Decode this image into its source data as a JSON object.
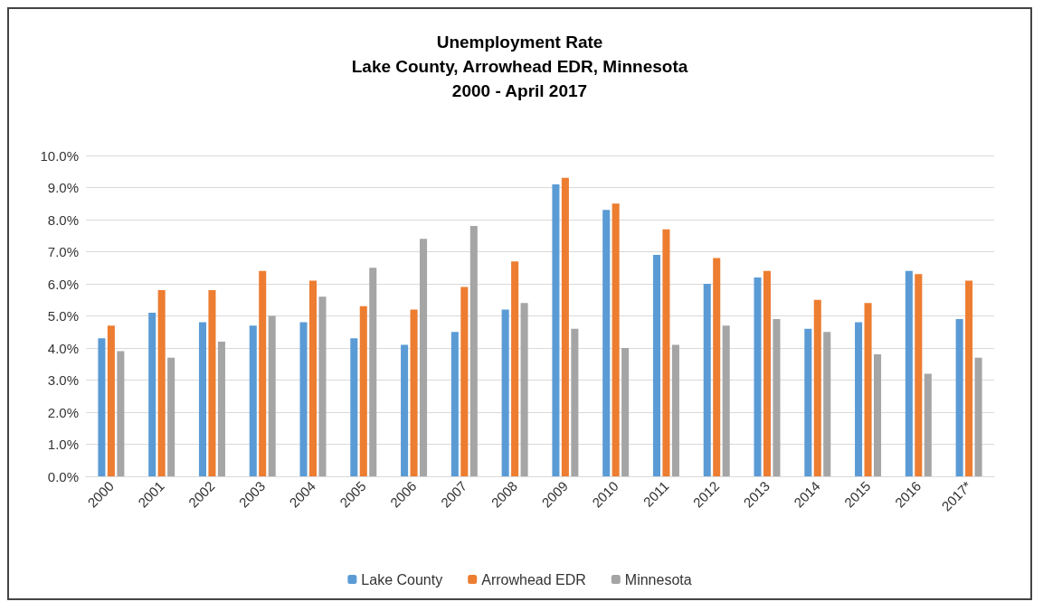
{
  "chart_data": {
    "type": "bar",
    "title": "Unemployment Rate\nLake County, Arrowhead EDR, Minnesota\n2000 - April 2017",
    "categories": [
      "2000",
      "2001",
      "2002",
      "2003",
      "2004",
      "2005",
      "2006",
      "2007",
      "2008",
      "2009",
      "2010",
      "2011",
      "2012",
      "2013",
      "2014",
      "2015",
      "2016",
      "2017*"
    ],
    "series": [
      {
        "name": "Lake County",
        "color": "#5b9bd5",
        "values": [
          4.3,
          5.1,
          4.8,
          4.7,
          4.8,
          4.3,
          4.1,
          4.5,
          5.2,
          9.1,
          8.3,
          6.9,
          6.0,
          6.2,
          4.6,
          4.8,
          6.4,
          4.9
        ]
      },
      {
        "name": "Arrowhead EDR",
        "color": "#ed7d31",
        "values": [
          4.7,
          5.8,
          5.8,
          6.4,
          6.1,
          5.3,
          5.2,
          5.9,
          6.7,
          9.3,
          8.5,
          7.7,
          6.8,
          6.4,
          5.5,
          5.4,
          6.3,
          6.1
        ]
      },
      {
        "name": "Minnesota",
        "color": "#a5a5a5",
        "values": [
          3.9,
          3.7,
          4.2,
          5.0,
          5.6,
          6.5,
          7.4,
          7.8,
          5.4,
          4.6,
          4.0,
          4.1,
          4.7,
          4.9,
          4.5,
          3.8,
          3.2,
          3.7
        ]
      }
    ],
    "ylim": [
      0,
      10
    ],
    "yticks": [
      {
        "value": 0,
        "label": "0.0%"
      },
      {
        "value": 1,
        "label": "1.0%"
      },
      {
        "value": 2,
        "label": "2.0%"
      },
      {
        "value": 3,
        "label": "3.0%"
      },
      {
        "value": 4,
        "label": "4.0%"
      },
      {
        "value": 5,
        "label": "5.0%"
      },
      {
        "value": 6,
        "label": "6.0%"
      },
      {
        "value": 7,
        "label": "7.0%"
      },
      {
        "value": 8,
        "label": "8.0%"
      },
      {
        "value": 9,
        "label": "9.0%"
      },
      {
        "value": 10,
        "label": "10.0%"
      }
    ],
    "grid": "y",
    "legend": "bottom"
  }
}
